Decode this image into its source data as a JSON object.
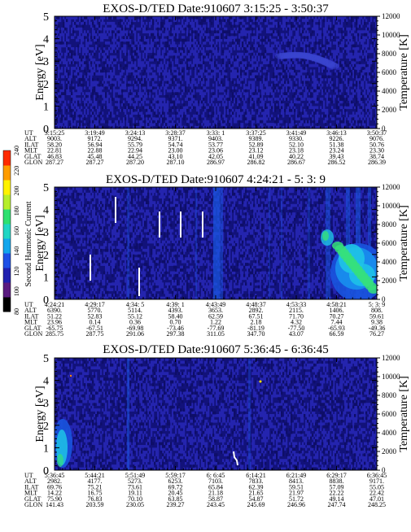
{
  "palette": {
    "bg_dark": "#12127a",
    "bg_mid": "#2a2ab4",
    "blue": "#1a55e0",
    "cyan": "#1fc4e6",
    "green": "#36e07a",
    "white": "#ffffff"
  },
  "colorbar": {
    "label": "Second Harmonic Current",
    "ticks": [
      "80",
      "100",
      "120",
      "140",
      "160",
      "180",
      "200",
      "220",
      "240"
    ],
    "colors": [
      "#000000",
      "#5a1a80",
      "#2020b0",
      "#1e50e6",
      "#12a6ec",
      "#20d6c4",
      "#2ee070",
      "#b6ee2a",
      "#fff200",
      "#ff9c00",
      "#ff2a00"
    ]
  },
  "chart_data": [
    {
      "type": "heatmap",
      "title": "EXOS-D/TED   Date:910607  3:15:25 - 3:50:37",
      "ylabel": "Energy [eV]",
      "y2label": "Temperature [K]",
      "ylim": [
        0,
        5
      ],
      "y2lim": [
        0,
        12000
      ],
      "yticks": [
        "0",
        "1",
        "2",
        "3",
        "4",
        "5"
      ],
      "y2ticks": [
        "0",
        "2000",
        "4000",
        "6000",
        "8000",
        "10000",
        "12000"
      ],
      "table": {
        "row_labels": [
          "UT",
          "ALT",
          "ILAT",
          "MLT",
          "GLAT",
          "GLON"
        ],
        "columns": [
          [
            "3:15:25",
            "9003.",
            "58.20",
            "22.81",
            "46.83",
            "287.27"
          ],
          [
            "3:19:49",
            "9172.",
            "56.94",
            "22.88",
            "45.48",
            "287.27"
          ],
          [
            "3:24:13",
            "9294.",
            "55.79",
            "22.94",
            "44.25",
            "287.20"
          ],
          [
            "3:28:37",
            "9371.",
            "54.74",
            "23.00",
            "43.10",
            "287.10"
          ],
          [
            "3:33: 1",
            "9403.",
            "53.77",
            "23.06",
            "42.05",
            "286.97"
          ],
          [
            "3:37:25",
            "9389.",
            "52.89",
            "23.12",
            "41.09",
            "286.82"
          ],
          [
            "3:41:49",
            "9330.",
            "52.10",
            "23.18",
            "40.22",
            "286.67"
          ],
          [
            "3:46:13",
            "9226.",
            "51.38",
            "23.24",
            "39.43",
            "286.52"
          ],
          [
            "3:50:37",
            "9076.",
            "50.76",
            "23.30",
            "38.74",
            "286.39"
          ]
        ]
      }
    },
    {
      "type": "heatmap",
      "title": "EXOS-D/TED   Date:910607  4:24:21 - 5: 3: 9",
      "ylabel": "Energy [eV]",
      "y2label": "Temperature [K]",
      "ylim": [
        0,
        5
      ],
      "y2lim": [
        0,
        12000
      ],
      "yticks": [
        "0",
        "1",
        "2",
        "3",
        "4",
        "5"
      ],
      "y2ticks": [
        "0",
        "2000",
        "4000",
        "6000",
        "8000",
        "10000",
        "12000"
      ],
      "table": {
        "row_labels": [
          "UT",
          "ALT",
          "ILAT",
          "MLT",
          "GLAT",
          "GLON"
        ],
        "columns": [
          [
            "4:24:21",
            "6390.",
            "51.22",
            "23.96",
            "-65.75",
            "285.75"
          ],
          [
            "4:29:17",
            "5770.",
            "52.83",
            "0.14",
            "-67.51",
            "287.75"
          ],
          [
            "4:34: 5",
            "5114.",
            "55.12",
            "0.36",
            "-69.98",
            "291.06"
          ],
          [
            "4:39: 1",
            "4393.",
            "58.40",
            "0.70",
            "-73.46",
            "297.38"
          ],
          [
            "4:43:49",
            "3653.",
            "62.59",
            "1.22",
            "-77.69",
            "311.05"
          ],
          [
            "4:48:37",
            "2892.",
            "67.51",
            "2.18",
            "-81.19",
            "347.70"
          ],
          [
            "4:53:33",
            "2115.",
            "71.70",
            "4.32",
            "-77.50",
            "43.07"
          ],
          [
            "4:58:21",
            "1406.",
            "70.27",
            "7.44",
            "-65.93",
            "66.59"
          ],
          [
            "5: 3: 9",
            "808.",
            "59.61",
            "9.38",
            "-49.36",
            "76.27"
          ]
        ]
      }
    },
    {
      "type": "heatmap",
      "title": "EXOS-D/TED   Date:910607  5:36:45 - 6:36:45",
      "ylabel": "Energy [eV]",
      "y2label": "Temperature [K]",
      "ylim": [
        0,
        5
      ],
      "y2lim": [
        0,
        12000
      ],
      "yticks": [
        "0",
        "1",
        "2",
        "3",
        "4",
        "5"
      ],
      "y2ticks": [
        "0",
        "2000",
        "4000",
        "6000",
        "8000",
        "10000",
        "12000"
      ],
      "table": {
        "row_labels": [
          "UT",
          "ALT",
          "ILAT",
          "MLT",
          "GLAT",
          "GLON"
        ],
        "columns": [
          [
            "5:36:45",
            "2982.",
            "69.76",
            "14.22",
            "75.90",
            "141.43"
          ],
          [
            "5:44:21",
            "4177.",
            "75.21",
            "16.75",
            "76.83",
            "203.59"
          ],
          [
            "5:51:49",
            "5273.",
            "73.61",
            "19.11",
            "70.10",
            "230.05"
          ],
          [
            "5:59:17",
            "6253.",
            "69.72",
            "20.45",
            "63.85",
            "239.27"
          ],
          [
            "6: 6:45",
            "7103.",
            "65.84",
            "21.18",
            "58.87",
            "243.45"
          ],
          [
            "6:14:21",
            "7833.",
            "62.39",
            "21.65",
            "54.87",
            "245.69"
          ],
          [
            "6:21:49",
            "8413.",
            "59.51",
            "21.97",
            "51.72",
            "246.96"
          ],
          [
            "6:29:17",
            "8838.",
            "57.09",
            "22.22",
            "49.14",
            "247.74"
          ],
          [
            "6:36:45",
            "9171.",
            "55.05",
            "22.42",
            "47.01",
            "248.25"
          ]
        ]
      }
    }
  ]
}
